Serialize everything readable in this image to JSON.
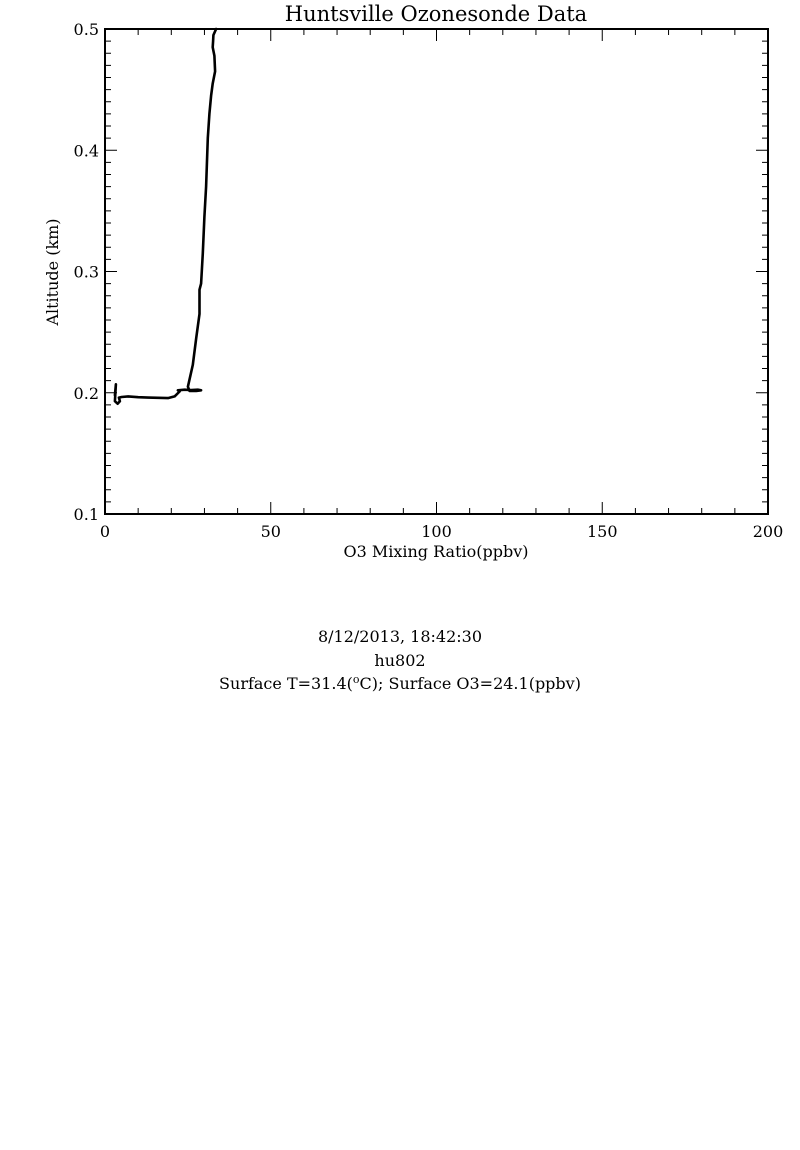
{
  "chart_data": {
    "type": "line",
    "title": "Huntsville Ozonesonde Data",
    "xlabel": "O3 Mixing Ratio(ppbv)",
    "ylabel": "Altitude (km)",
    "xlim": [
      0,
      200
    ],
    "ylim": [
      0.1,
      0.5
    ],
    "xticks": [
      0,
      50,
      100,
      150,
      200
    ],
    "xtick_labels": [
      "0",
      "50",
      "100",
      "150",
      "200"
    ],
    "yticks": [
      0.1,
      0.2,
      0.3,
      0.4,
      0.5
    ],
    "ytick_labels": [
      "0.1",
      "0.2",
      "0.3",
      "0.4",
      "0.5"
    ],
    "grid": false,
    "series": [
      {
        "color": "#000000",
        "x": [
          3.0,
          3.3,
          3.0,
          3.8,
          4.5,
          4.2,
          5.0,
          7.0,
          10.0,
          13.0,
          16.0,
          19.0,
          21.0,
          22.5,
          22.0,
          24.0,
          26.0,
          28.0,
          29.0,
          27.5,
          25.5,
          25.0,
          26.5,
          27.5,
          28.5,
          28.5,
          29.0,
          29.5,
          30.0,
          30.5,
          31.0,
          31.5,
          32.0,
          32.5,
          33.2,
          33.0,
          32.5,
          32.6,
          32.7,
          33.5
        ],
        "y": [
          0.198,
          0.207,
          0.193,
          0.191,
          0.193,
          0.196,
          0.1965,
          0.197,
          0.1963,
          0.196,
          0.1958,
          0.1956,
          0.197,
          0.201,
          0.202,
          0.2025,
          0.2022,
          0.2025,
          0.202,
          0.2015,
          0.2015,
          0.205,
          0.223,
          0.245,
          0.265,
          0.285,
          0.29,
          0.315,
          0.345,
          0.37,
          0.41,
          0.43,
          0.445,
          0.455,
          0.465,
          0.478,
          0.485,
          0.49,
          0.495,
          0.5
        ]
      }
    ]
  },
  "captions": {
    "date_time": "8/12/2013, 18:42:30",
    "station": "hu802",
    "surface_t_prefix": "Surface T=31.4(",
    "surface_t_super": "o",
    "surface_t_suffix": "C); Surface O3=24.1(ppbv)"
  }
}
